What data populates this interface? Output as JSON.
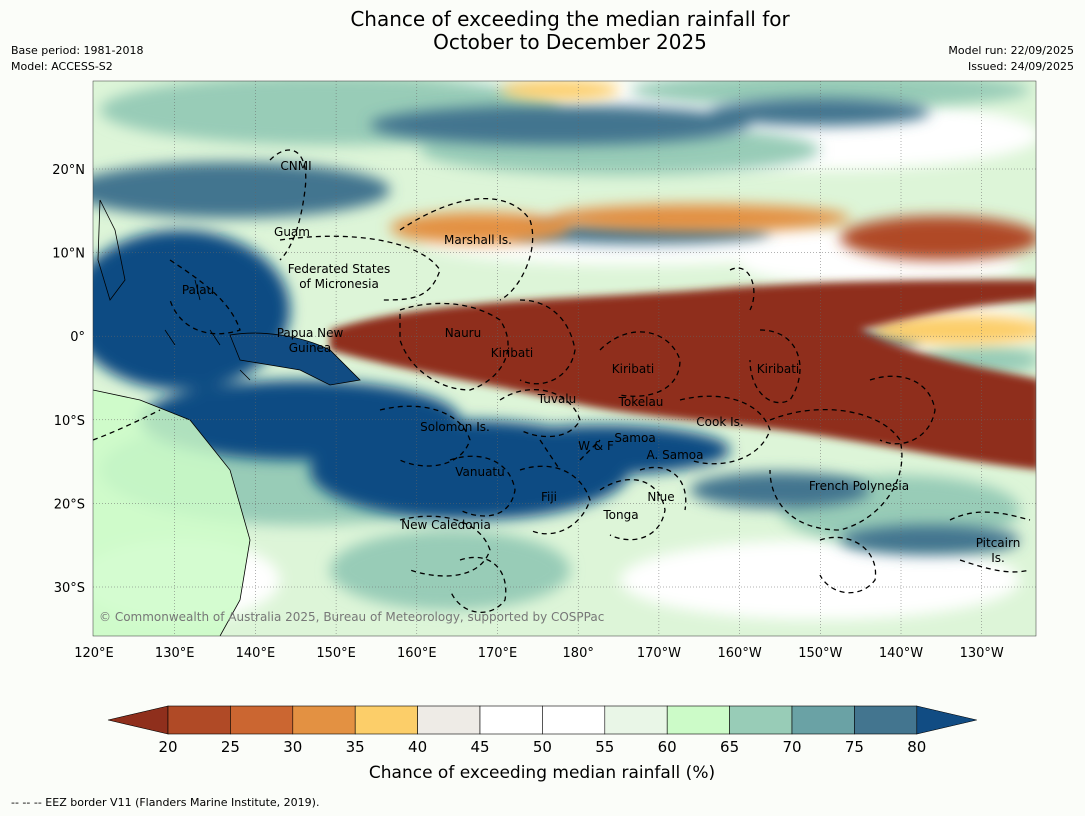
{
  "title_line1": "Chance of exceeding the median rainfall for",
  "title_line2": "October to December 2025",
  "meta_left": {
    "base_period": "Base period: 1981-2018",
    "model": "Model: ACCESS-S2"
  },
  "meta_right": {
    "model_run": "Model run: 22/09/2025",
    "issued": "Issued: 24/09/2025"
  },
  "copyright": "© Commonwealth of Australia 2025, Bureau of Meteorology, supported by COSPPac",
  "lon_ticks": [
    "120°E",
    "130°E",
    "140°E",
    "150°E",
    "160°E",
    "170°E",
    "180°",
    "170°W",
    "160°W",
    "150°W",
    "140°W",
    "130°W"
  ],
  "lat_ticks": [
    "20°N",
    "10°N",
    "0°",
    "10°S",
    "20°S",
    "30°S"
  ],
  "regions": {
    "cnmi": "CNMI",
    "guam": "Guam",
    "marshall": "Marshall Is.",
    "fsm_1": "Federated States",
    "fsm_2": "of Micronesia",
    "palau": "Palau",
    "png_1": "Papua New",
    "png_2": "Guinea",
    "nauru": "Nauru",
    "kiribati_w": "Kiribati",
    "kiribati_c": "Kiribati",
    "kiribati_e": "Kiribati",
    "tuvalu": "Tuvalu",
    "tokelau": "Tokelau",
    "cook": "Cook Is.",
    "solomon": "Solomon Is.",
    "wf": "W & F",
    "samoa": "Samoa",
    "asamoa": "A. Samoa",
    "vanuatu": "Vanuatu",
    "fiji": "Fiji",
    "niue": "Niue",
    "tonga": "Tonga",
    "newcal": "New Caledonia",
    "frpoly": "French Polynesia",
    "pitcairn_1": "Pitcairn",
    "pitcairn_2": "Is."
  },
  "colorbar": {
    "label": "Chance of exceeding median rainfall (%)",
    "ticks": [
      "20",
      "25",
      "30",
      "35",
      "40",
      "45",
      "50",
      "55",
      "60",
      "65",
      "70",
      "75",
      "80"
    ],
    "colors": [
      "#8f2f1c",
      "#b04a26",
      "#cb6631",
      "#e39142",
      "#fcce69",
      "#eeebe6",
      "#ffffff",
      "#ffffff",
      "#e9f6e7",
      "#ccfbc8",
      "#98ccb7",
      "#6aa2a5",
      "#43758f",
      "#114c83"
    ]
  },
  "footer": "--  --  -- EEZ border V11 (Flanders Marine Institute, 2019)."
}
